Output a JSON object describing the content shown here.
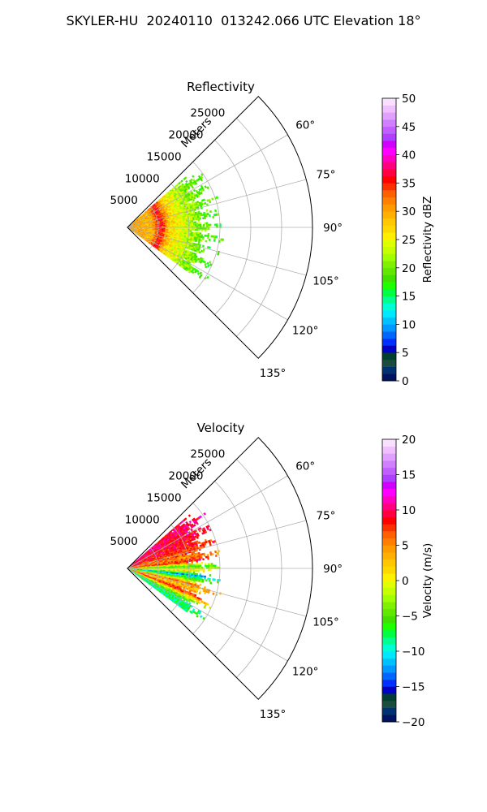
{
  "title": "SKYLER-HU  20240110  013242.066 UTC Elevation 18°",
  "chart_data": [
    {
      "type": "heatmap",
      "projection": "polar-sector",
      "title": "Reflectivity",
      "radial_axis_label": "Meters",
      "radial_ticks": [
        5000,
        10000,
        15000,
        20000,
        25000
      ],
      "radial_range": [
        0,
        30000
      ],
      "angle_ticks": [
        "60°",
        "75°",
        "90°",
        "105°",
        "120°",
        "135°"
      ],
      "angle_tick_values_deg": [
        60,
        75,
        90,
        105,
        120,
        135
      ],
      "angle_range_deg": [
        45,
        135
      ],
      "grid": true,
      "data_extent_m": 16000,
      "colorbar": {
        "label": "Reflectivity dBZ",
        "range": [
          0,
          50
        ],
        "ticks": [
          "0",
          "5",
          "10",
          "15",
          "20",
          "25",
          "30",
          "35",
          "40",
          "45",
          "50"
        ],
        "colors": [
          "#00135f",
          "#00326f",
          "#1a4d3f",
          "#003f30",
          "#0000c0",
          "#0030ff",
          "#0066ff",
          "#0099ff",
          "#00c0ff",
          "#00e8ff",
          "#00ffd0",
          "#00ff90",
          "#00ff40",
          "#20ff00",
          "#40e000",
          "#60e800",
          "#80f000",
          "#a0ff00",
          "#c8ff00",
          "#e0ff00",
          "#fff000",
          "#ffd800",
          "#ffc800",
          "#ffb000",
          "#ff9a00",
          "#ff8000",
          "#ff6000",
          "#ff3000",
          "#ff0000",
          "#ff0040",
          "#ff0080",
          "#ff00c0",
          "#ff00ff",
          "#d000ff",
          "#b040ff",
          "#c060ff",
          "#d080ff",
          "#e0a0ff",
          "#f0c0ff",
          "#f8e0ff"
        ]
      },
      "range_profile": [
        {
          "r": 0,
          "value": 30
        },
        {
          "r": 2000,
          "value": 30
        },
        {
          "r": 4000,
          "value": 29
        },
        {
          "r": 5500,
          "value": 36
        },
        {
          "r": 7000,
          "value": 27
        },
        {
          "r": 9000,
          "value": 24
        },
        {
          "r": 11000,
          "value": 21
        },
        {
          "r": 13000,
          "value": 19
        },
        {
          "r": 15000,
          "value": 18
        },
        {
          "r": 16000,
          "value": 17
        }
      ]
    },
    {
      "type": "heatmap",
      "projection": "polar-sector",
      "title": "Velocity",
      "radial_axis_label": "Meters",
      "radial_ticks": [
        5000,
        10000,
        15000,
        20000,
        25000
      ],
      "radial_range": [
        0,
        30000
      ],
      "angle_ticks": [
        "60°",
        "75°",
        "90°",
        "105°",
        "120°",
        "135°"
      ],
      "angle_tick_values_deg": [
        60,
        75,
        90,
        105,
        120,
        135
      ],
      "angle_range_deg": [
        45,
        135
      ],
      "grid": true,
      "data_extent_m": 16000,
      "colorbar": {
        "label": "Velocity (m/s)",
        "range": [
          -20,
          20
        ],
        "ticks": [
          "−20",
          "−15",
          "−10",
          "−5",
          "0",
          "5",
          "10",
          "15",
          "20"
        ],
        "colors": [
          "#00135f",
          "#00326f",
          "#1a4d3f",
          "#003f30",
          "#0000c0",
          "#0030ff",
          "#0066ff",
          "#0099ff",
          "#00c0ff",
          "#00e8ff",
          "#00ffd0",
          "#00ff90",
          "#00ff40",
          "#20ff00",
          "#40e000",
          "#60e800",
          "#80f000",
          "#a0ff00",
          "#c8ff00",
          "#e0ff00",
          "#fff000",
          "#ffd800",
          "#ffc800",
          "#ffb000",
          "#ff9a00",
          "#ff8000",
          "#ff6000",
          "#ff3000",
          "#ff0000",
          "#ff0040",
          "#ff0080",
          "#ff00c0",
          "#ff00ff",
          "#d000ff",
          "#b040ff",
          "#c060ff",
          "#d080ff",
          "#e0a0ff",
          "#f0c0ff",
          "#f8e0ff"
        ]
      },
      "azimuth_profile": [
        {
          "az": 55,
          "value": 10
        },
        {
          "az": 63,
          "value": 9
        },
        {
          "az": 72,
          "value": 8
        },
        {
          "az": 80,
          "value": 5
        },
        {
          "az": 84,
          "value": 9
        },
        {
          "az": 88,
          "value": -6
        },
        {
          "az": 92,
          "value": 2
        },
        {
          "az": 96,
          "value": -12
        },
        {
          "az": 100,
          "value": -4
        },
        {
          "az": 104,
          "value": 6
        },
        {
          "az": 108,
          "value": 2
        },
        {
          "az": 112,
          "value": 9
        },
        {
          "az": 116,
          "value": -2
        },
        {
          "az": 120,
          "value": -8
        }
      ]
    }
  ]
}
